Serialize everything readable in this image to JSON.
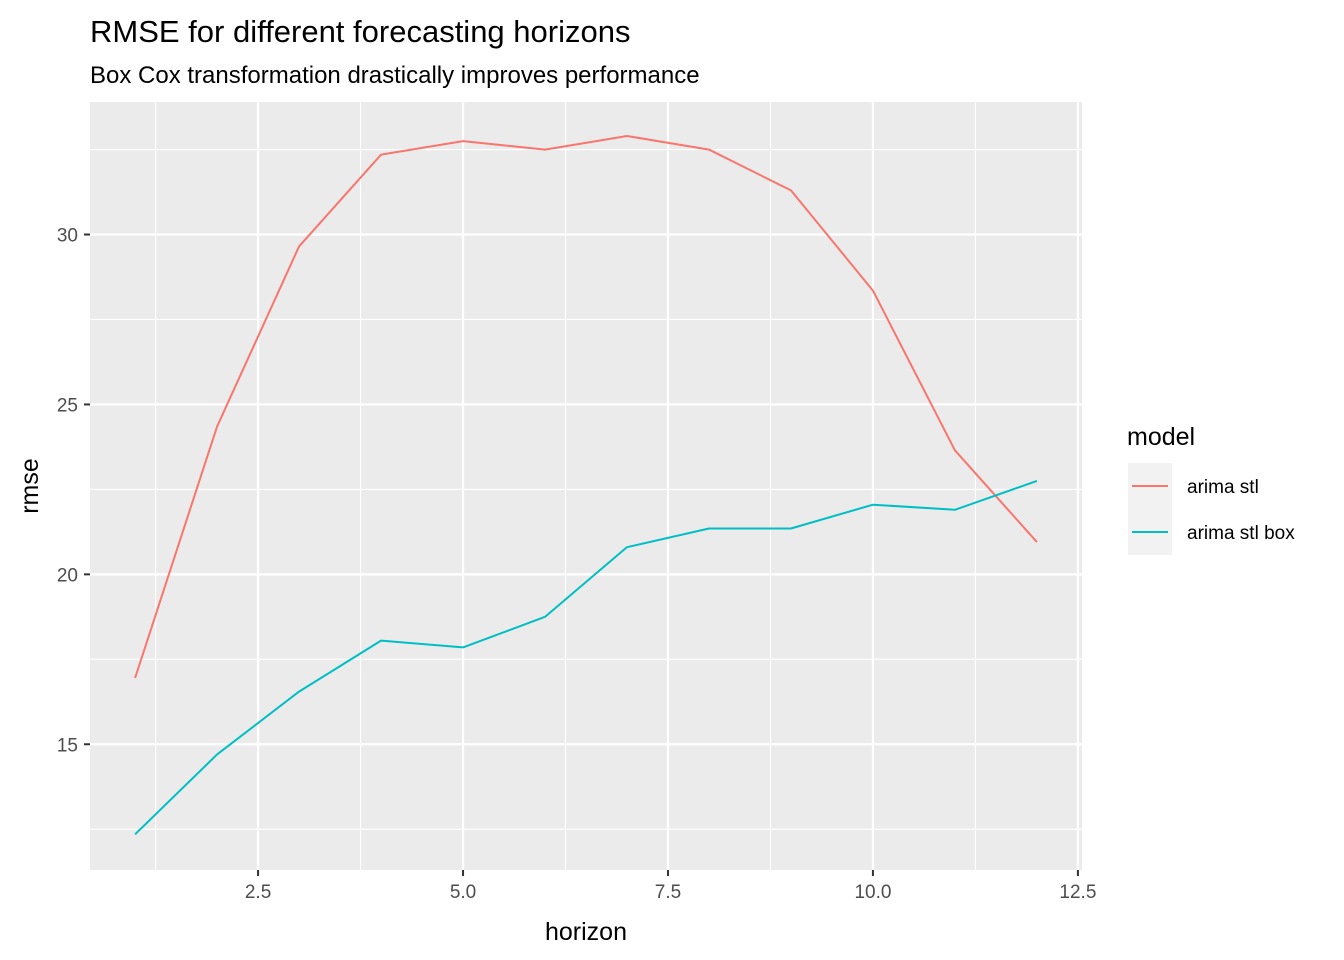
{
  "chart_data": {
    "type": "line",
    "title": "RMSE for different forecasting horizons",
    "subtitle": "Box Cox transformation drastically improves performance",
    "xlabel": "horizon",
    "ylabel": "rmse",
    "xlim": [
      0.45,
      12.55
    ],
    "ylim": [
      11.3,
      33.9
    ],
    "x_ticks": [
      2.5,
      5.0,
      7.5,
      10.0,
      12.5
    ],
    "x_tick_labels": [
      "2.5",
      "5.0",
      "7.5",
      "10.0",
      "12.5"
    ],
    "x_minor": [
      1.25,
      3.75,
      6.25,
      8.75,
      11.25
    ],
    "y_ticks": [
      15,
      20,
      25,
      30
    ],
    "y_tick_labels": [
      "15",
      "20",
      "25",
      "30"
    ],
    "y_minor": [
      12.5,
      17.5,
      22.5,
      27.5,
      32.5
    ],
    "grid": true,
    "legend_title": "model",
    "legend_position": "right",
    "x": [
      1,
      2,
      3,
      4,
      5,
      6,
      7,
      8,
      9,
      10,
      11,
      12
    ],
    "series": [
      {
        "name": "arima stl",
        "color": "#F8766D",
        "values": [
          16.95,
          24.35,
          29.65,
          32.35,
          32.75,
          32.5,
          32.9,
          32.5,
          31.3,
          28.35,
          23.65,
          20.95
        ]
      },
      {
        "name": "arima stl box",
        "color": "#00BFC4",
        "values": [
          12.35,
          14.7,
          16.55,
          18.05,
          17.85,
          18.75,
          20.8,
          21.35,
          21.35,
          22.05,
          21.9,
          22.75
        ]
      }
    ]
  }
}
